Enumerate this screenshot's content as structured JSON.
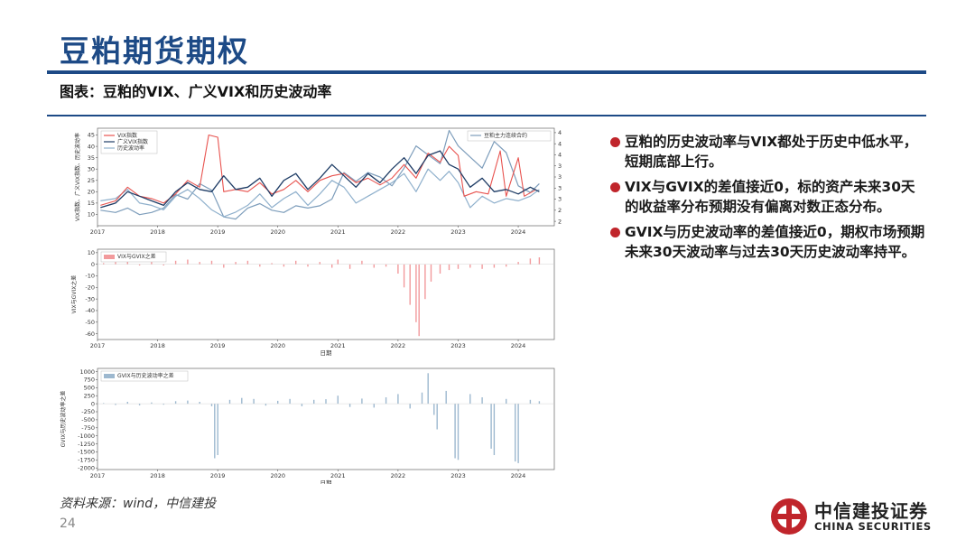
{
  "header": {
    "title": "豆粕期货期权",
    "subtitle": "图表：豆粕的VIX、广义VIX和历史波动率"
  },
  "bullets": [
    "豆粕的历史波动率与VIX都处于历史中低水平，短期底部上行。",
    "VIX与GVIX的差值接近0，标的资产未来30天的收益率分布预期没有偏离对数正态分布。",
    "GVIX与历史波动率的差值接近0，期权市场预期未来30天波动率与过去30天历史波动率持平。"
  ],
  "footer": {
    "source": "资料来源：wind，中信建投",
    "page": "24",
    "logo_cn": "中信建投证券",
    "logo_en": "CHINA SECURITIES"
  },
  "colors": {
    "brand": "#1d4a86",
    "vix": "#e8534f",
    "gvix": "#1f3d66",
    "hv": "#8fb0cc",
    "futures": "#7d9dbb",
    "diff1": "#f29a9c",
    "diff2": "#9db8cf",
    "bullet": "#c0252b"
  },
  "chart_data": [
    {
      "type": "line",
      "x_ticks": [
        "2017",
        "2018",
        "2019",
        "2020",
        "2021",
        "2022",
        "2023",
        "2024"
      ],
      "ylabel": "VIX指数、广义VIX指数、历史波动率",
      "y2label": "豆粕主力连续合约",
      "ylim": [
        5,
        48
      ],
      "y_ticks": [
        10,
        15,
        20,
        25,
        30,
        35,
        40,
        45
      ],
      "y2lim": [
        2400,
        4600
      ],
      "y2_ticks": [
        2500,
        2750,
        3000,
        3250,
        3500,
        3750,
        4000,
        4250,
        4500
      ],
      "legend": [
        "VIX指数",
        "广义VIX指数",
        "历史波动率"
      ],
      "legend2": [
        "豆粕主力连续合约"
      ],
      "series": [
        {
          "name": "VIX指数",
          "values": [
            [
              2017.05,
              14
            ],
            [
              2017.3,
              16
            ],
            [
              2017.5,
              22
            ],
            [
              2017.7,
              18
            ],
            [
              2017.9,
              17
            ],
            [
              2018.1,
              15
            ],
            [
              2018.3,
              19
            ],
            [
              2018.5,
              25
            ],
            [
              2018.7,
              22
            ],
            [
              2018.85,
              45
            ],
            [
              2019.0,
              44
            ],
            [
              2019.1,
              20
            ],
            [
              2019.3,
              21
            ],
            [
              2019.5,
              20
            ],
            [
              2019.7,
              24
            ],
            [
              2019.9,
              19
            ],
            [
              2020.1,
              21
            ],
            [
              2020.3,
              25
            ],
            [
              2020.5,
              20
            ],
            [
              2020.7,
              25
            ],
            [
              2020.9,
              27
            ],
            [
              2021.1,
              28
            ],
            [
              2021.3,
              24
            ],
            [
              2021.5,
              26
            ],
            [
              2021.7,
              23
            ],
            [
              2021.9,
              26
            ],
            [
              2022.1,
              32
            ],
            [
              2022.3,
              26
            ],
            [
              2022.5,
              37
            ],
            [
              2022.7,
              33
            ],
            [
              2022.85,
              40
            ],
            [
              2023.0,
              36
            ],
            [
              2023.1,
              18
            ],
            [
              2023.3,
              20
            ],
            [
              2023.5,
              19
            ],
            [
              2023.7,
              38
            ],
            [
              2023.8,
              18
            ],
            [
              2024.0,
              35
            ],
            [
              2024.1,
              18
            ],
            [
              2024.3,
              21
            ]
          ]
        },
        {
          "name": "广义VIX指数",
          "values": [
            [
              2017.05,
              13
            ],
            [
              2017.3,
              15
            ],
            [
              2017.5,
              20
            ],
            [
              2017.7,
              18
            ],
            [
              2017.9,
              16
            ],
            [
              2018.1,
              14
            ],
            [
              2018.3,
              20
            ],
            [
              2018.5,
              24
            ],
            [
              2018.7,
              21
            ],
            [
              2018.9,
              20
            ],
            [
              2019.1,
              27
            ],
            [
              2019.3,
              21
            ],
            [
              2019.5,
              22
            ],
            [
              2019.7,
              26
            ],
            [
              2019.9,
              18
            ],
            [
              2020.1,
              25
            ],
            [
              2020.3,
              28
            ],
            [
              2020.5,
              21
            ],
            [
              2020.7,
              26
            ],
            [
              2020.9,
              32
            ],
            [
              2021.1,
              27
            ],
            [
              2021.3,
              22
            ],
            [
              2021.5,
              28
            ],
            [
              2021.7,
              24
            ],
            [
              2021.9,
              30
            ],
            [
              2022.1,
              35
            ],
            [
              2022.3,
              28
            ],
            [
              2022.5,
              36
            ],
            [
              2022.7,
              38
            ],
            [
              2022.85,
              32
            ],
            [
              2023.0,
              30
            ],
            [
              2023.2,
              22
            ],
            [
              2023.4,
              26
            ],
            [
              2023.6,
              20
            ],
            [
              2023.8,
              21
            ],
            [
              2024.0,
              19
            ],
            [
              2024.2,
              22
            ],
            [
              2024.35,
              20
            ]
          ]
        },
        {
          "name": "历史波动率",
          "values": [
            [
              2017.05,
              16
            ],
            [
              2017.3,
              17
            ],
            [
              2017.5,
              21
            ],
            [
              2017.7,
              15
            ],
            [
              2017.9,
              14
            ],
            [
              2018.1,
              12
            ],
            [
              2018.3,
              18
            ],
            [
              2018.5,
              21
            ],
            [
              2018.7,
              17
            ],
            [
              2018.9,
              12
            ],
            [
              2019.1,
              9
            ],
            [
              2019.3,
              11
            ],
            [
              2019.5,
              14
            ],
            [
              2019.7,
              19
            ],
            [
              2019.9,
              13
            ],
            [
              2020.1,
              17
            ],
            [
              2020.3,
              20
            ],
            [
              2020.5,
              14
            ],
            [
              2020.7,
              19
            ],
            [
              2020.9,
              25
            ],
            [
              2021.1,
              22
            ],
            [
              2021.3,
              15
            ],
            [
              2021.5,
              18
            ],
            [
              2021.7,
              21
            ],
            [
              2021.9,
              24
            ],
            [
              2022.1,
              28
            ],
            [
              2022.3,
              20
            ],
            [
              2022.5,
              30
            ],
            [
              2022.7,
              25
            ],
            [
              2022.85,
              29
            ],
            [
              2023.0,
              24
            ],
            [
              2023.2,
              13
            ],
            [
              2023.4,
              18
            ],
            [
              2023.6,
              15
            ],
            [
              2023.8,
              17
            ],
            [
              2024.0,
              16
            ],
            [
              2024.2,
              18
            ],
            [
              2024.35,
              21
            ]
          ]
        }
      ],
      "series2": [
        {
          "name": "豆粕主力连续合约",
          "values": [
            [
              2017.05,
              2750
            ],
            [
              2017.3,
              2700
            ],
            [
              2017.5,
              2800
            ],
            [
              2017.7,
              2650
            ],
            [
              2017.9,
              2700
            ],
            [
              2018.1,
              2800
            ],
            [
              2018.3,
              3100
            ],
            [
              2018.5,
              3000
            ],
            [
              2018.7,
              3350
            ],
            [
              2018.9,
              3200
            ],
            [
              2019.1,
              2600
            ],
            [
              2019.3,
              2550
            ],
            [
              2019.5,
              2800
            ],
            [
              2019.7,
              2900
            ],
            [
              2019.9,
              2750
            ],
            [
              2020.1,
              2700
            ],
            [
              2020.3,
              2850
            ],
            [
              2020.5,
              2800
            ],
            [
              2020.7,
              2850
            ],
            [
              2020.9,
              3000
            ],
            [
              2021.1,
              3600
            ],
            [
              2021.3,
              3400
            ],
            [
              2021.5,
              3600
            ],
            [
              2021.7,
              3500
            ],
            [
              2021.9,
              3300
            ],
            [
              2022.1,
              3700
            ],
            [
              2022.3,
              4200
            ],
            [
              2022.5,
              4000
            ],
            [
              2022.7,
              3800
            ],
            [
              2022.85,
              4550
            ],
            [
              2023.0,
              4200
            ],
            [
              2023.2,
              3950
            ],
            [
              2023.4,
              3700
            ],
            [
              2023.6,
              4300
            ],
            [
              2023.8,
              4050
            ],
            [
              2024.0,
              3300
            ],
            [
              2024.2,
              3150
            ],
            [
              2024.35,
              3350
            ]
          ]
        }
      ]
    },
    {
      "type": "bar",
      "x_ticks": [
        "2017",
        "2018",
        "2019",
        "2020",
        "2021",
        "2022",
        "2023",
        "2024"
      ],
      "xlabel": "日期",
      "ylabel": "VIX与GVIX之差",
      "ylim": [
        -65,
        13
      ],
      "y_ticks": [
        10,
        0,
        -10,
        -20,
        -30,
        -40,
        -50,
        -60
      ],
      "legend": [
        "VIX与GVIX之差"
      ],
      "series": [
        {
          "name": "VIX与GVIX之差",
          "values": [
            [
              2017.1,
              1
            ],
            [
              2017.3,
              2
            ],
            [
              2017.5,
              3
            ],
            [
              2017.7,
              -1
            ],
            [
              2017.9,
              2
            ],
            [
              2018.1,
              -1
            ],
            [
              2018.3,
              3
            ],
            [
              2018.5,
              4
            ],
            [
              2018.7,
              2
            ],
            [
              2018.9,
              3
            ],
            [
              2019.1,
              -3
            ],
            [
              2019.3,
              2
            ],
            [
              2019.5,
              3
            ],
            [
              2019.7,
              -2
            ],
            [
              2019.9,
              1
            ],
            [
              2020.1,
              -2
            ],
            [
              2020.3,
              3
            ],
            [
              2020.5,
              -2
            ],
            [
              2020.7,
              2
            ],
            [
              2020.9,
              -3
            ],
            [
              2021.0,
              4
            ],
            [
              2021.2,
              -4
            ],
            [
              2021.4,
              3
            ],
            [
              2021.6,
              -3
            ],
            [
              2021.8,
              -2
            ],
            [
              2022.0,
              -8
            ],
            [
              2022.1,
              -20
            ],
            [
              2022.2,
              -35
            ],
            [
              2022.3,
              -50
            ],
            [
              2022.35,
              -62
            ],
            [
              2022.45,
              -30
            ],
            [
              2022.55,
              -15
            ],
            [
              2022.7,
              -8
            ],
            [
              2022.85,
              -5
            ],
            [
              2023.0,
              -4
            ],
            [
              2023.2,
              -3
            ],
            [
              2023.4,
              -4
            ],
            [
              2023.6,
              -3
            ],
            [
              2023.8,
              -2
            ],
            [
              2024.0,
              2
            ],
            [
              2024.2,
              5
            ],
            [
              2024.35,
              6
            ]
          ]
        }
      ]
    },
    {
      "type": "bar",
      "x_ticks": [
        "2017",
        "2018",
        "2019",
        "2020",
        "2021",
        "2022",
        "2023",
        "2024"
      ],
      "xlabel": "日期",
      "ylabel": "GVIX与历史波动率之差",
      "ylim": [
        -2050,
        1100
      ],
      "y_ticks": [
        1000,
        750,
        500,
        250,
        0,
        -250,
        -500,
        -750,
        -1000,
        -1250,
        -1500,
        -1750,
        -2000
      ],
      "legend": [
        "GVIX与历史波动率之差"
      ],
      "series": [
        {
          "name": "GVIX与历史波动率之差",
          "values": [
            [
              2017.1,
              20
            ],
            [
              2017.3,
              -40
            ],
            [
              2017.5,
              60
            ],
            [
              2017.7,
              -50
            ],
            [
              2017.9,
              40
            ],
            [
              2018.1,
              -30
            ],
            [
              2018.3,
              80
            ],
            [
              2018.5,
              100
            ],
            [
              2018.7,
              60
            ],
            [
              2018.9,
              -80
            ],
            [
              2018.95,
              -1700
            ],
            [
              2019.0,
              -1600
            ],
            [
              2019.2,
              120
            ],
            [
              2019.4,
              180
            ],
            [
              2019.6,
              150
            ],
            [
              2019.8,
              -60
            ],
            [
              2020.0,
              90
            ],
            [
              2020.2,
              150
            ],
            [
              2020.4,
              -80
            ],
            [
              2020.6,
              120
            ],
            [
              2020.8,
              140
            ],
            [
              2021.0,
              250
            ],
            [
              2021.2,
              -100
            ],
            [
              2021.4,
              160
            ],
            [
              2021.6,
              -120
            ],
            [
              2021.8,
              200
            ],
            [
              2022.0,
              300
            ],
            [
              2022.2,
              -150
            ],
            [
              2022.4,
              350
            ],
            [
              2022.5,
              950
            ],
            [
              2022.6,
              -350
            ],
            [
              2022.65,
              -800
            ],
            [
              2022.8,
              400
            ],
            [
              2022.95,
              -1700
            ],
            [
              2023.0,
              -1750
            ],
            [
              2023.2,
              300
            ],
            [
              2023.4,
              200
            ],
            [
              2023.55,
              -1400
            ],
            [
              2023.6,
              -1600
            ],
            [
              2023.8,
              150
            ],
            [
              2023.95,
              -1800
            ],
            [
              2024.0,
              -1850
            ],
            [
              2024.2,
              120
            ],
            [
              2024.35,
              80
            ]
          ]
        }
      ]
    }
  ]
}
